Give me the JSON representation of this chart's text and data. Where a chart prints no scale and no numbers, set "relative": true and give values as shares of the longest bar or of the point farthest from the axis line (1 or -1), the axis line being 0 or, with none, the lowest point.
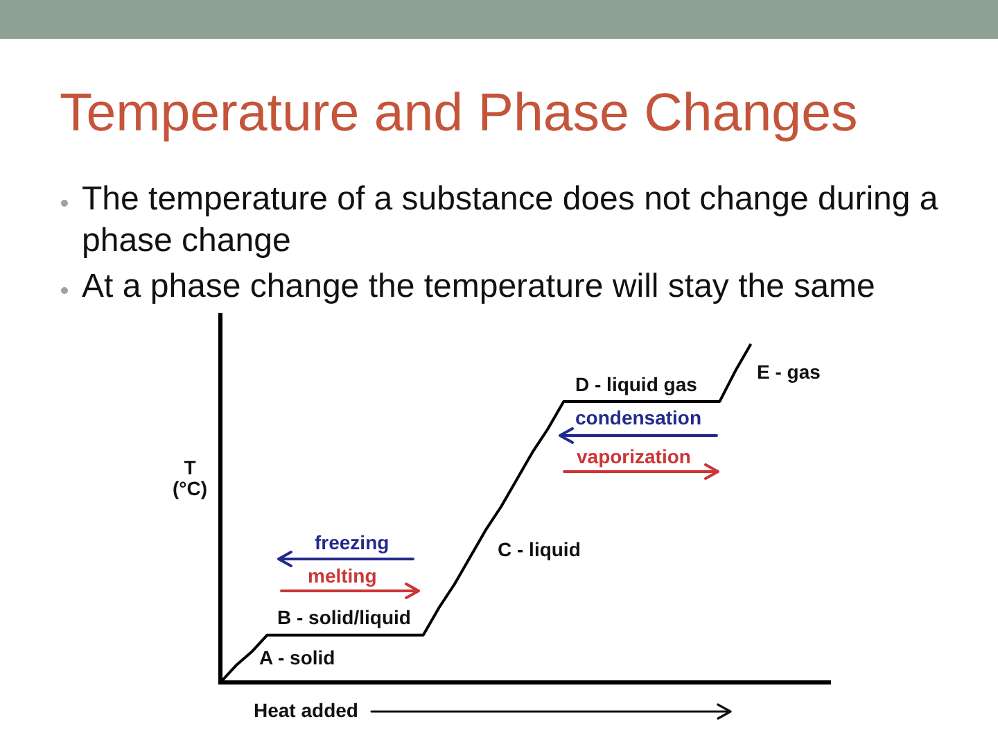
{
  "chart_data": {
    "type": "line",
    "title": "Temperature and Phase Changes",
    "xlabel": "Heat added",
    "ylabel": "T\n(°C)",
    "annotations": [
      "The temperature of a substance does not change during a phase change",
      "At a phase change the temperature will stay the same",
      "D - liquid gas",
      "E - gas",
      "condensation",
      "vaporization",
      "freezing",
      "melting",
      "B - solid/liquid",
      "A - solid",
      "C - liquid"
    ],
    "categories": [
      null,
      null,
      null,
      null,
      null,
      null,
      null,
      null,
      null,
      null,
      null,
      null,
      null,
      null,
      null,
      null,
      null,
      null,
      null,
      null,
      null,
      null,
      null,
      null,
      null,
      null,
      null,
      null,
      null,
      null,
      null,
      null,
      null,
      null,
      null,
      null,
      null,
      null,
      null,
      null
    ],
    "series": [
      {
        "color": "#000000",
        "values": [
          0,
          0.05,
          0.09,
          0.14,
          0.14,
          0.14,
          0.14,
          0.14,
          0.14,
          0.14,
          0.14,
          0.14,
          0.14,
          0.14,
          0.22,
          0.29,
          0.37,
          0.45,
          0.52,
          0.6,
          0.68,
          0.75,
          0.83,
          0.83,
          0.83,
          0.83,
          0.83,
          0.83,
          0.83,
          0.83,
          0.83,
          0.83,
          0.83,
          0.92,
          1,
          null,
          null,
          null,
          null,
          null
        ]
      }
    ],
    "relative": true,
    "marker": "none",
    "line_style": "solid"
  }
}
